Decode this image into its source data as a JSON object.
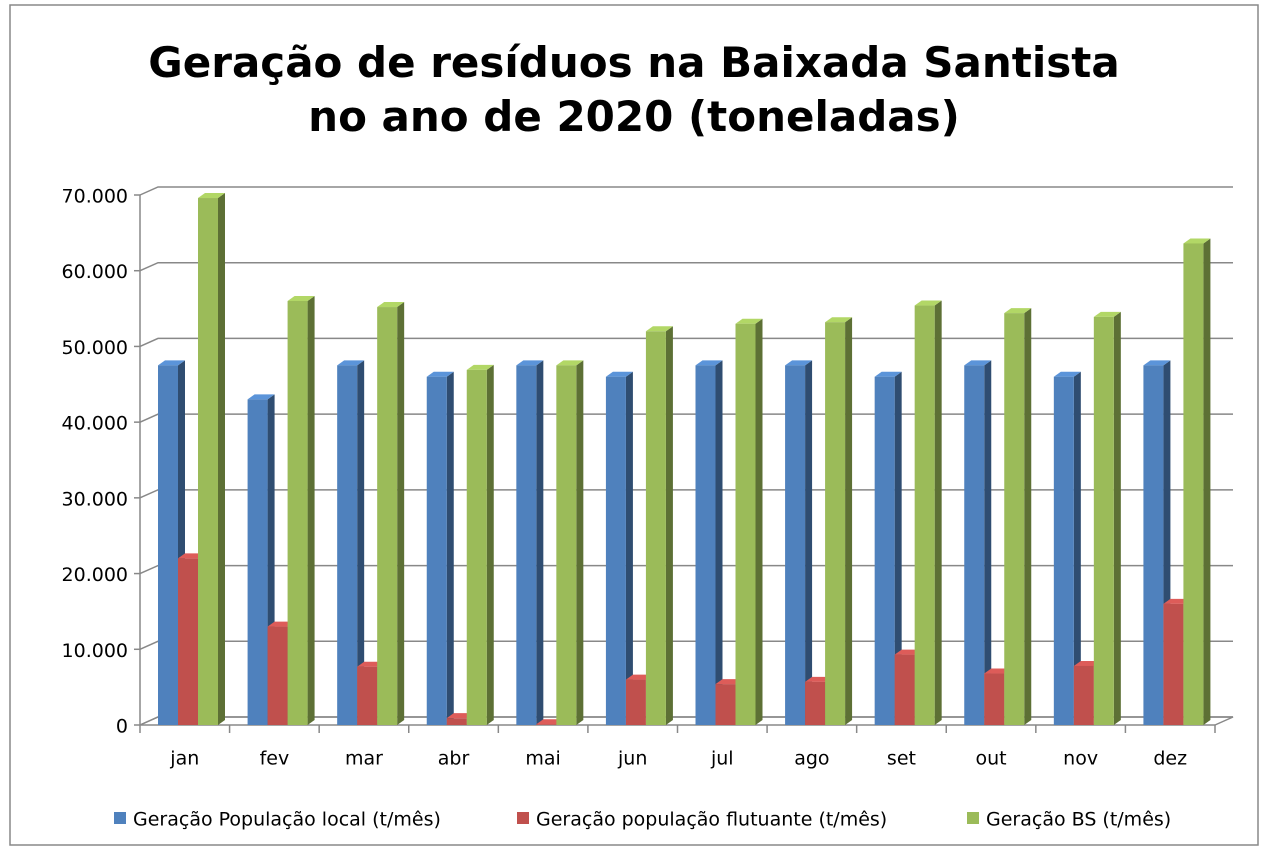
{
  "chart_data": {
    "type": "bar",
    "title": "Geração de resíduos na Baixada Santista no ano de 2020 (toneladas)",
    "categories": [
      "jan",
      "fev",
      "mar",
      "abr",
      "mai",
      "jun",
      "jul",
      "ago",
      "set",
      "out",
      "nov",
      "dez"
    ],
    "series": [
      {
        "name": "Geração População local (t/mês)",
        "color": "#4f81bd",
        "values": [
          47500,
          43000,
          47500,
          46000,
          47500,
          46000,
          47500,
          47500,
          46000,
          47500,
          46000,
          47500
        ]
      },
      {
        "name": "Geração população flutuante (t/mês)",
        "color": "#c0504d",
        "values": [
          22000,
          13000,
          7700,
          900,
          100,
          6000,
          5400,
          5700,
          9300,
          6800,
          7800,
          16000
        ]
      },
      {
        "name": "Geração BS (t/mês)",
        "color": "#9bbb59",
        "values": [
          69600,
          56000,
          55200,
          46900,
          47500,
          52000,
          53000,
          53200,
          55400,
          54400,
          53900,
          63600
        ]
      }
    ],
    "ylim": [
      0,
      70000
    ],
    "yticks": [
      0,
      {
        "value": 10000,
        "label": "10.000"
      },
      {
        "value": 20000,
        "label": "20.000"
      },
      {
        "value": 30000,
        "label": "30.000"
      },
      {
        "value": 40000,
        "label": "40.000"
      },
      {
        "value": 50000,
        "label": "50.000"
      },
      {
        "value": 60000,
        "label": "60.000"
      },
      {
        "value": 70000,
        "label": "70.000"
      }
    ],
    "grid": true,
    "legend": "bottom"
  }
}
